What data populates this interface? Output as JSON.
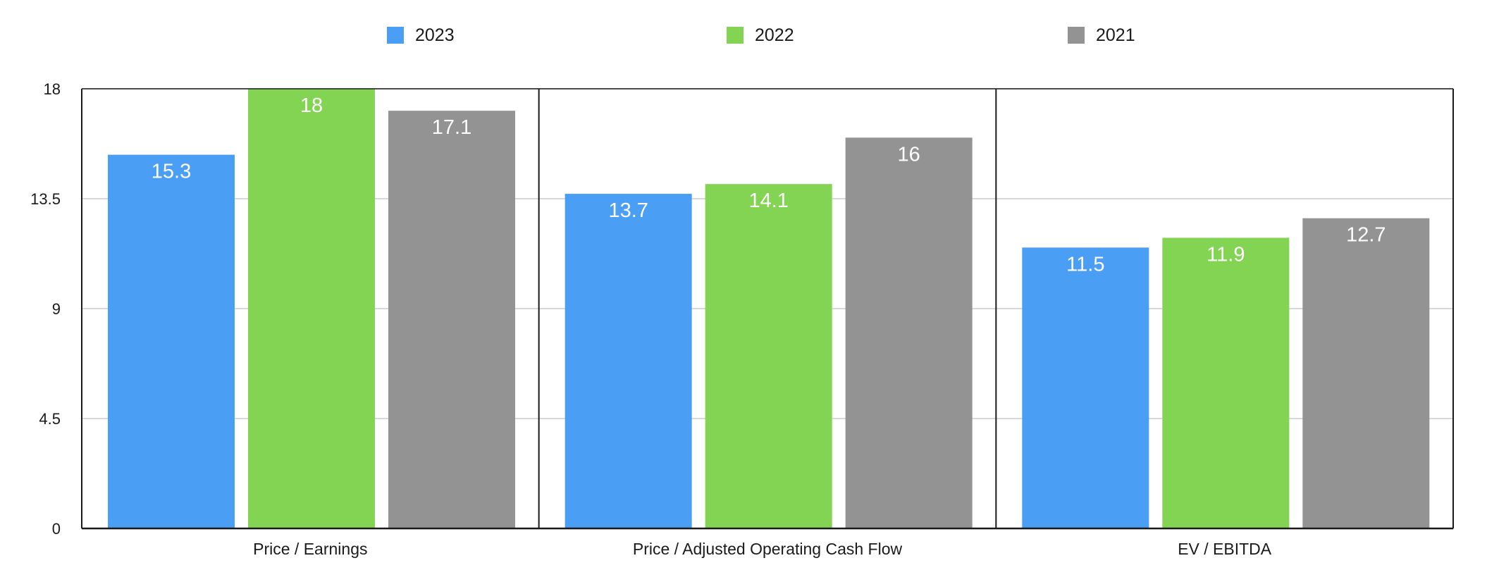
{
  "chart_data": {
    "type": "bar",
    "categories": [
      "Price / Earnings",
      "Price / Adjusted Operating Cash Flow",
      "EV / EBITDA"
    ],
    "series": [
      {
        "name": "2023",
        "color": "#4a9ff5",
        "values": [
          15.3,
          13.7,
          11.5
        ]
      },
      {
        "name": "2022",
        "color": "#82d452",
        "values": [
          18,
          14.1,
          11.9
        ]
      },
      {
        "name": "2021",
        "color": "#939393",
        "values": [
          17.1,
          16,
          12.7
        ]
      }
    ],
    "data_labels": [
      [
        "15.3",
        "13.7",
        "11.5"
      ],
      [
        "18",
        "14.1",
        "11.9"
      ],
      [
        "17.1",
        "16",
        "12.7"
      ]
    ],
    "y_ticks": [
      "0",
      "4.5",
      "9",
      "13.5",
      "18"
    ],
    "ylim": [
      0,
      18
    ],
    "title": "",
    "xlabel": "",
    "ylabel": "",
    "grid": true,
    "legend_position": "top"
  }
}
